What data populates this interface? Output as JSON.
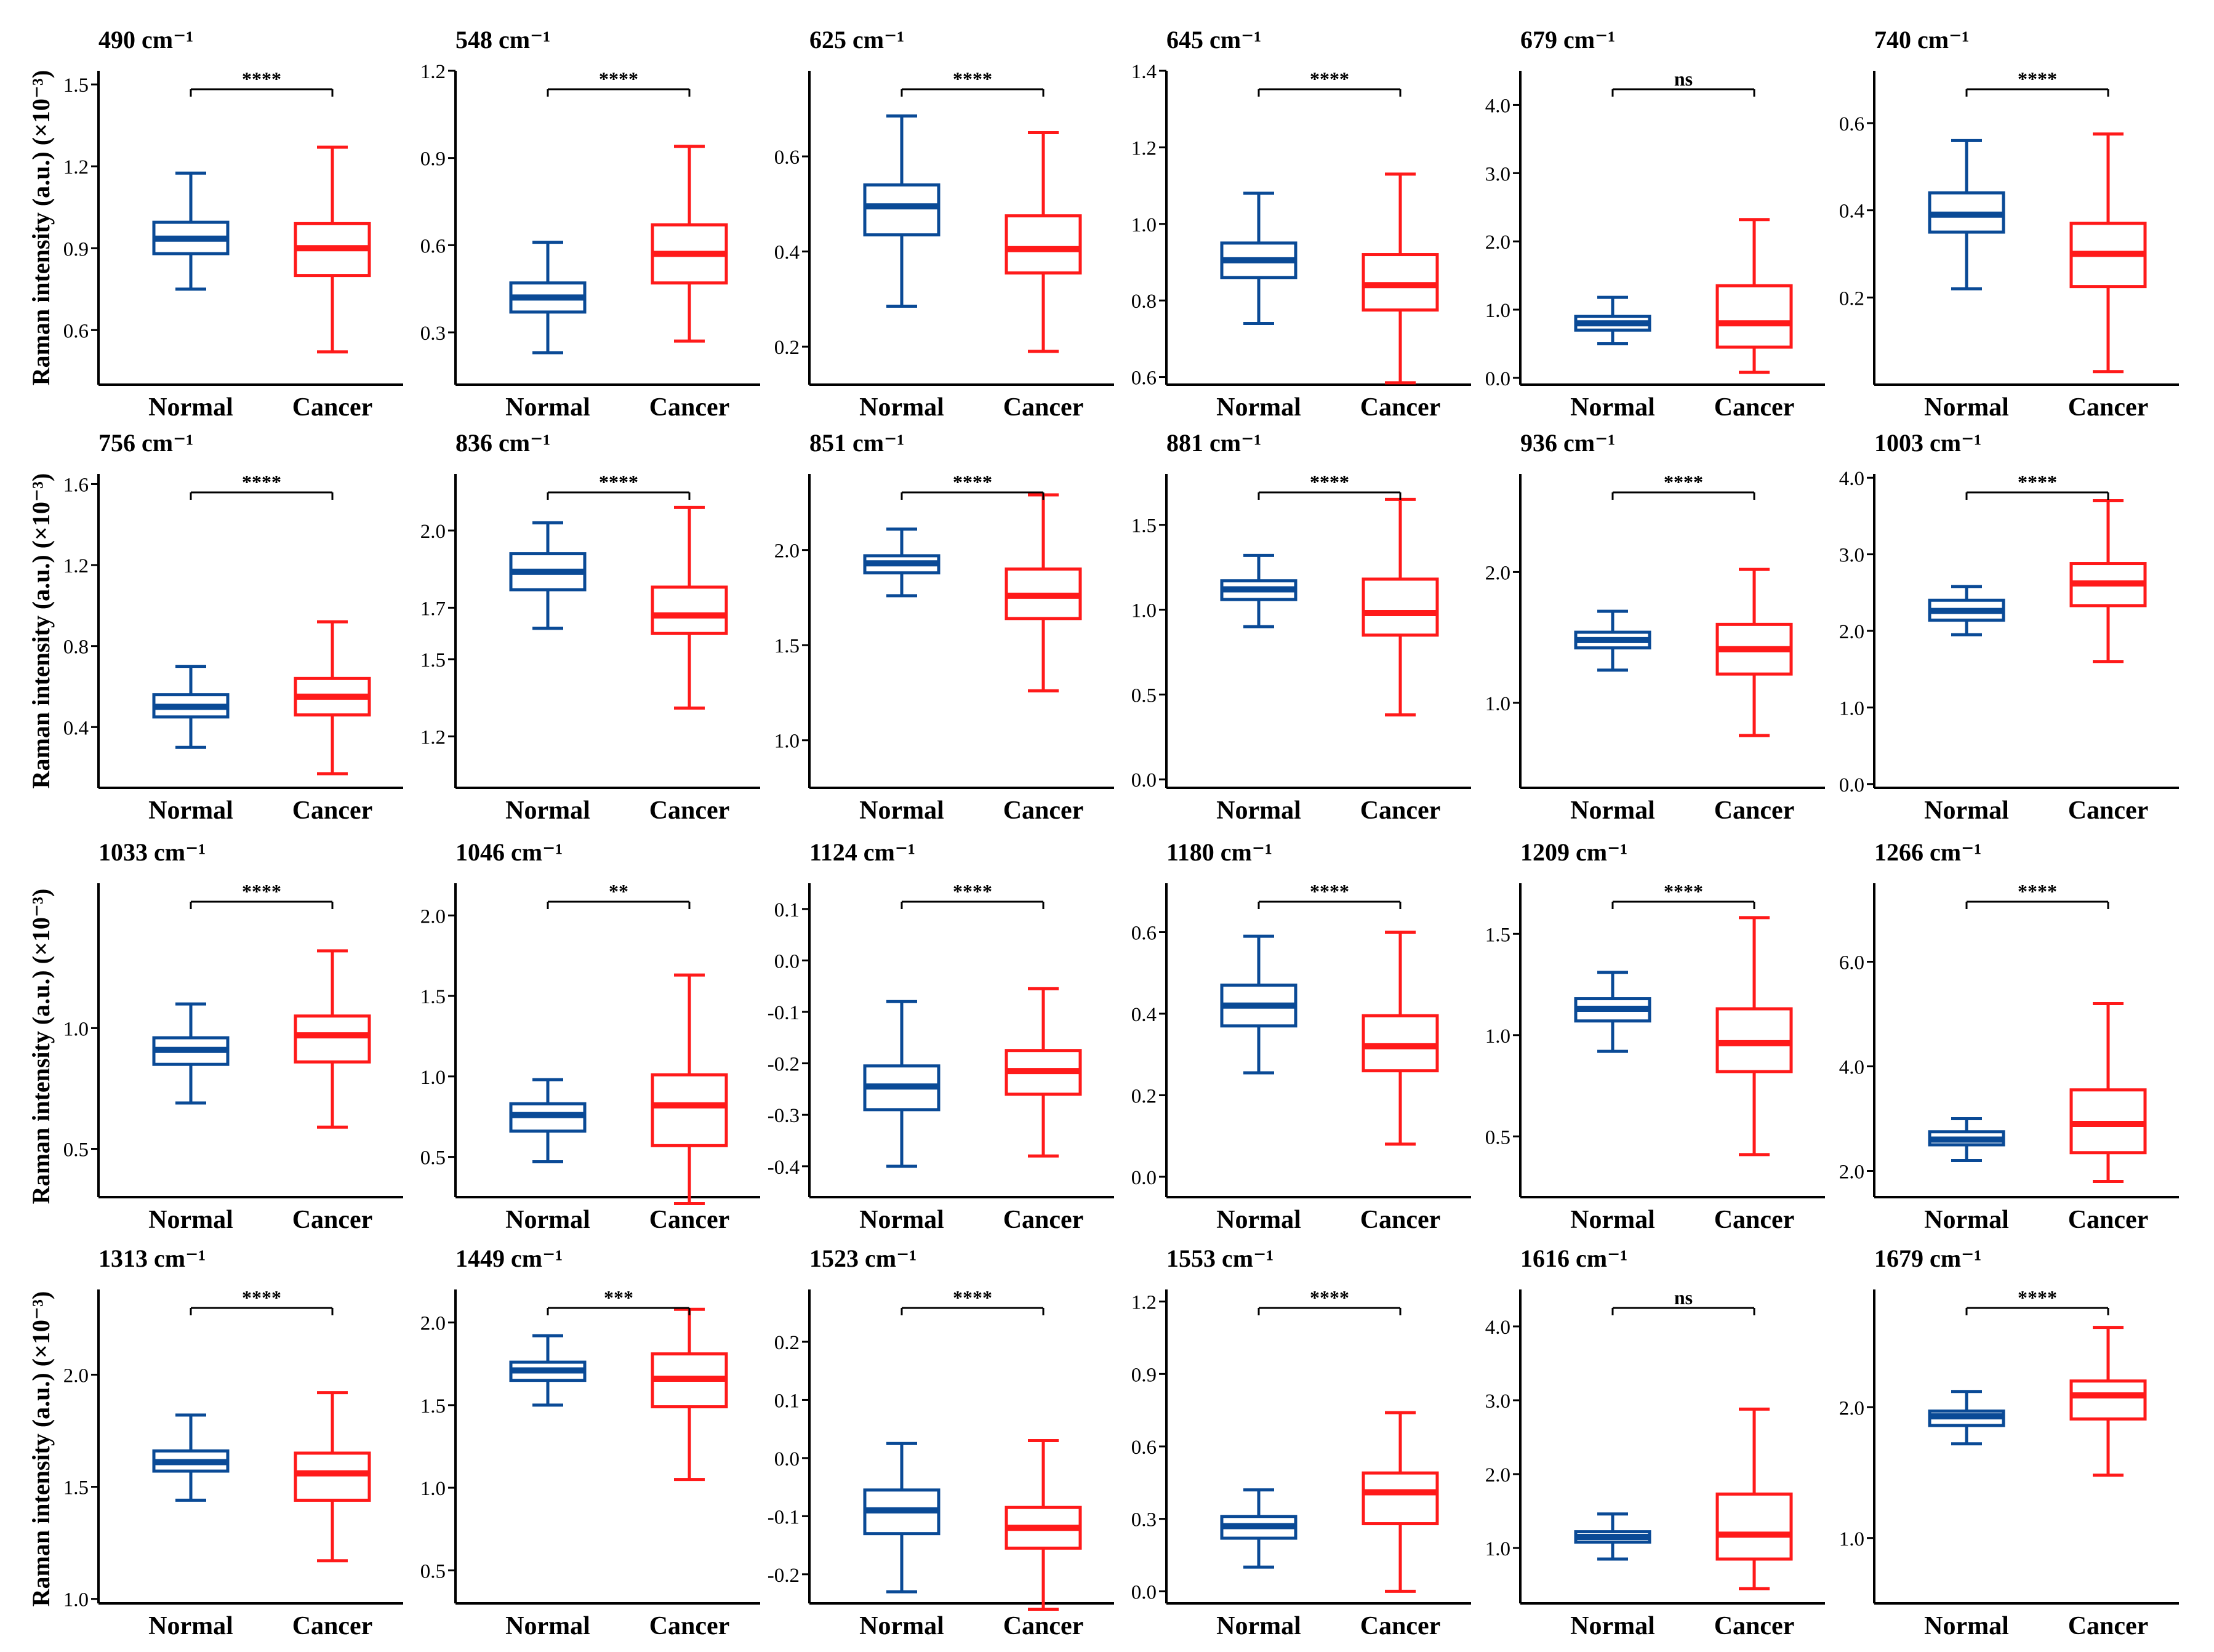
{
  "figure": {
    "ylabel": "Raman intensity (a.u.) (×10⁻³)",
    "categories": [
      "Normal",
      "Cancer"
    ],
    "colors": {
      "normal": "#0a4a96",
      "cancer": "#ff1a1a",
      "axis": "#000000"
    }
  },
  "chart_data": [
    {
      "type": "box",
      "title": "490 cm⁻¹",
      "ylim": [
        0.4,
        1.55
      ],
      "ticks": [
        0.6,
        0.9,
        1.2,
        1.5
      ],
      "tick_labels": [
        "0.6",
        "0.9",
        "1.2",
        "1.5"
      ],
      "sig": "****",
      "categories": [
        "Normal",
        "Cancer"
      ],
      "series": [
        {
          "name": "Normal",
          "min": 0.75,
          "q1": 0.88,
          "median": 0.935,
          "q3": 0.995,
          "max": 1.175
        },
        {
          "name": "Cancer",
          "min": 0.52,
          "q1": 0.8,
          "median": 0.9,
          "q3": 0.99,
          "max": 1.27
        }
      ]
    },
    {
      "type": "box",
      "title": "548 cm⁻¹",
      "ylim": [
        0.12,
        1.2
      ],
      "ticks": [
        0.3,
        0.6,
        0.9,
        1.2
      ],
      "tick_labels": [
        "0.3",
        "0.6",
        "0.9",
        "1.2"
      ],
      "sig": "****",
      "categories": [
        "Normal",
        "Cancer"
      ],
      "series": [
        {
          "name": "Normal",
          "min": 0.23,
          "q1": 0.37,
          "median": 0.42,
          "q3": 0.47,
          "max": 0.61
        },
        {
          "name": "Cancer",
          "min": 0.27,
          "q1": 0.47,
          "median": 0.57,
          "q3": 0.67,
          "max": 0.94
        }
      ]
    },
    {
      "type": "box",
      "title": "625 cm⁻¹",
      "ylim": [
        0.12,
        0.78
      ],
      "ticks": [
        0.2,
        0.4,
        0.6
      ],
      "tick_labels": [
        "0.2",
        "0.4",
        "0.6"
      ],
      "sig": "****",
      "categories": [
        "Normal",
        "Cancer"
      ],
      "series": [
        {
          "name": "Normal",
          "min": 0.285,
          "q1": 0.435,
          "median": 0.495,
          "q3": 0.54,
          "max": 0.685
        },
        {
          "name": "Cancer",
          "min": 0.19,
          "q1": 0.355,
          "median": 0.405,
          "q3": 0.475,
          "max": 0.65
        }
      ]
    },
    {
      "type": "box",
      "title": "645 cm⁻¹",
      "ylim": [
        0.58,
        1.4
      ],
      "ticks": [
        0.6,
        0.8,
        1.0,
        1.2,
        1.4
      ],
      "tick_labels": [
        "0.6",
        "0.8",
        "1.0",
        "1.2",
        "1.4"
      ],
      "sig": "****",
      "categories": [
        "Normal",
        "Cancer"
      ],
      "series": [
        {
          "name": "Normal",
          "min": 0.74,
          "q1": 0.86,
          "median": 0.905,
          "q3": 0.95,
          "max": 1.08
        },
        {
          "name": "Cancer",
          "min": 0.585,
          "q1": 0.775,
          "median": 0.84,
          "q3": 0.92,
          "max": 1.13
        }
      ]
    },
    {
      "type": "box",
      "title": "679 cm⁻¹",
      "ylim": [
        -0.1,
        4.5
      ],
      "ticks": [
        0.0,
        1.0,
        2.0,
        3.0,
        4.0
      ],
      "tick_labels": [
        "0.0",
        "1.0",
        "2.0",
        "3.0",
        "4.0"
      ],
      "sig": "ns",
      "categories": [
        "Normal",
        "Cancer"
      ],
      "series": [
        {
          "name": "Normal",
          "min": 0.5,
          "q1": 0.7,
          "median": 0.8,
          "q3": 0.9,
          "max": 1.18
        },
        {
          "name": "Cancer",
          "min": 0.08,
          "q1": 0.45,
          "median": 0.8,
          "q3": 1.35,
          "max": 2.32
        }
      ]
    },
    {
      "type": "box",
      "title": "740 cm⁻¹",
      "ylim": [
        0.0,
        0.72
      ],
      "ticks": [
        0.2,
        0.4,
        0.6
      ],
      "tick_labels": [
        "0.2",
        "0.4",
        "0.6"
      ],
      "sig": "****",
      "categories": [
        "Normal",
        "Cancer"
      ],
      "series": [
        {
          "name": "Normal",
          "min": 0.22,
          "q1": 0.35,
          "median": 0.39,
          "q3": 0.44,
          "max": 0.56
        },
        {
          "name": "Cancer",
          "min": 0.03,
          "q1": 0.225,
          "median": 0.3,
          "q3": 0.37,
          "max": 0.575
        }
      ]
    },
    {
      "type": "box",
      "title": "756 cm⁻¹",
      "ylim": [
        0.1,
        1.65
      ],
      "ticks": [
        0.4,
        0.8,
        1.2,
        1.6
      ],
      "tick_labels": [
        "0.4",
        "0.8",
        "1.2",
        "1.6"
      ],
      "sig": "****",
      "categories": [
        "Normal",
        "Cancer"
      ],
      "series": [
        {
          "name": "Normal",
          "min": 0.3,
          "q1": 0.45,
          "median": 0.5,
          "q3": 0.56,
          "max": 0.7
        },
        {
          "name": "Cancer",
          "min": 0.17,
          "q1": 0.46,
          "median": 0.55,
          "q3": 0.64,
          "max": 0.92
        }
      ]
    },
    {
      "type": "box",
      "title": "836 cm⁻¹",
      "ylim": [
        1.0,
        2.22
      ],
      "ticks": [
        1.2,
        1.5,
        1.7,
        2.0
      ],
      "tick_labels": [
        "1.2",
        "1.5",
        "1.7",
        "2.0"
      ],
      "sig": "****",
      "categories": [
        "Normal",
        "Cancer"
      ],
      "series": [
        {
          "name": "Normal",
          "min": 1.62,
          "q1": 1.77,
          "median": 1.84,
          "q3": 1.91,
          "max": 2.03
        },
        {
          "name": "Cancer",
          "min": 1.31,
          "q1": 1.6,
          "median": 1.67,
          "q3": 1.78,
          "max": 2.09
        }
      ]
    },
    {
      "type": "box",
      "title": "851 cm⁻¹",
      "ylim": [
        0.75,
        2.4
      ],
      "ticks": [
        1.0,
        1.5,
        2.0
      ],
      "tick_labels": [
        "1.0",
        "1.5",
        "2.0"
      ],
      "sig": "****",
      "categories": [
        "Normal",
        "Cancer"
      ],
      "series": [
        {
          "name": "Normal",
          "min": 1.76,
          "q1": 1.88,
          "median": 1.93,
          "q3": 1.97,
          "max": 2.11
        },
        {
          "name": "Cancer",
          "min": 1.26,
          "q1": 1.64,
          "median": 1.76,
          "q3": 1.9,
          "max": 2.29
        }
      ]
    },
    {
      "type": "box",
      "title": "881 cm⁻¹",
      "ylim": [
        -0.05,
        1.8
      ],
      "ticks": [
        0.0,
        0.5,
        1.0,
        1.5
      ],
      "tick_labels": [
        "0.0",
        "0.5",
        "1.0",
        "1.5"
      ],
      "sig": "****",
      "categories": [
        "Normal",
        "Cancer"
      ],
      "series": [
        {
          "name": "Normal",
          "min": 0.9,
          "q1": 1.06,
          "median": 1.12,
          "q3": 1.17,
          "max": 1.32
        },
        {
          "name": "Cancer",
          "min": 0.38,
          "q1": 0.85,
          "median": 0.98,
          "q3": 1.18,
          "max": 1.65
        }
      ]
    },
    {
      "type": "box",
      "title": "936 cm⁻¹",
      "ylim": [
        0.35,
        2.75
      ],
      "ticks": [
        1.0,
        2.0
      ],
      "tick_labels": [
        "1.0",
        "2.0"
      ],
      "sig": "****",
      "categories": [
        "Normal",
        "Cancer"
      ],
      "series": [
        {
          "name": "Normal",
          "min": 1.25,
          "q1": 1.42,
          "median": 1.48,
          "q3": 1.54,
          "max": 1.7
        },
        {
          "name": "Cancer",
          "min": 0.75,
          "q1": 1.22,
          "median": 1.41,
          "q3": 1.6,
          "max": 2.02
        }
      ]
    },
    {
      "type": "box",
      "title": "1003 cm⁻¹",
      "ylim": [
        -0.05,
        4.05
      ],
      "ticks": [
        0.0,
        1.0,
        2.0,
        3.0,
        4.0
      ],
      "tick_labels": [
        "0.0",
        "1.0",
        "2.0",
        "3.0",
        "4.0"
      ],
      "sig": "****",
      "categories": [
        "Normal",
        "Cancer"
      ],
      "series": [
        {
          "name": "Normal",
          "min": 1.95,
          "q1": 2.14,
          "median": 2.26,
          "q3": 2.4,
          "max": 2.58
        },
        {
          "name": "Cancer",
          "min": 1.6,
          "q1": 2.33,
          "median": 2.62,
          "q3": 2.88,
          "max": 3.7
        }
      ]
    },
    {
      "type": "box",
      "title": "1033 cm⁻¹",
      "ylim": [
        0.3,
        1.6
      ],
      "ticks": [
        0.5,
        1.0
      ],
      "tick_labels": [
        "0.5",
        "1.0"
      ],
      "sig": "****",
      "categories": [
        "Normal",
        "Cancer"
      ],
      "series": [
        {
          "name": "Normal",
          "min": 0.69,
          "q1": 0.85,
          "median": 0.91,
          "q3": 0.96,
          "max": 1.1
        },
        {
          "name": "Cancer",
          "min": 0.59,
          "q1": 0.86,
          "median": 0.97,
          "q3": 1.05,
          "max": 1.32
        }
      ]
    },
    {
      "type": "box",
      "title": "1046 cm⁻¹",
      "ylim": [
        0.25,
        2.2
      ],
      "ticks": [
        0.5,
        1.0,
        1.5,
        2.0
      ],
      "tick_labels": [
        "0.5",
        "1.0",
        "1.5",
        "2.0"
      ],
      "sig": "**",
      "categories": [
        "Normal",
        "Cancer"
      ],
      "series": [
        {
          "name": "Normal",
          "min": 0.47,
          "q1": 0.66,
          "median": 0.76,
          "q3": 0.83,
          "max": 0.98
        },
        {
          "name": "Cancer",
          "min": 0.21,
          "q1": 0.57,
          "median": 0.82,
          "q3": 1.01,
          "max": 1.63
        }
      ]
    },
    {
      "type": "box",
      "title": "1124 cm⁻¹",
      "ylim": [
        -0.46,
        0.15
      ],
      "ticks": [
        -0.4,
        -0.3,
        -0.2,
        -0.1,
        0.0,
        0.1
      ],
      "tick_labels": [
        "-0.4",
        "-0.3",
        "-0.2",
        "-0.1",
        "0.0",
        "0.1"
      ],
      "sig": "****",
      "categories": [
        "Normal",
        "Cancer"
      ],
      "series": [
        {
          "name": "Normal",
          "min": -0.4,
          "q1": -0.29,
          "median": -0.245,
          "q3": -0.205,
          "max": -0.08
        },
        {
          "name": "Cancer",
          "min": -0.38,
          "q1": -0.26,
          "median": -0.215,
          "q3": -0.175,
          "max": -0.055
        }
      ]
    },
    {
      "type": "box",
      "title": "1180 cm⁻¹",
      "ylim": [
        -0.05,
        0.72
      ],
      "ticks": [
        0.0,
        0.2,
        0.4,
        0.6
      ],
      "tick_labels": [
        "0.0",
        "0.2",
        "0.4",
        "0.6"
      ],
      "sig": "****",
      "categories": [
        "Normal",
        "Cancer"
      ],
      "series": [
        {
          "name": "Normal",
          "min": 0.255,
          "q1": 0.37,
          "median": 0.42,
          "q3": 0.47,
          "max": 0.59
        },
        {
          "name": "Cancer",
          "min": 0.08,
          "q1": 0.26,
          "median": 0.32,
          "q3": 0.395,
          "max": 0.6
        }
      ]
    },
    {
      "type": "box",
      "title": "1209 cm⁻¹",
      "ylim": [
        0.2,
        1.75
      ],
      "ticks": [
        0.5,
        1.0,
        1.5
      ],
      "tick_labels": [
        "0.5",
        "1.0",
        "1.5"
      ],
      "sig": "****",
      "categories": [
        "Normal",
        "Cancer"
      ],
      "series": [
        {
          "name": "Normal",
          "min": 0.92,
          "q1": 1.07,
          "median": 1.13,
          "q3": 1.18,
          "max": 1.31
        },
        {
          "name": "Cancer",
          "min": 0.41,
          "q1": 0.82,
          "median": 0.96,
          "q3": 1.13,
          "max": 1.58
        }
      ]
    },
    {
      "type": "box",
      "title": "1266 cm⁻¹",
      "ylim": [
        1.5,
        7.5
      ],
      "ticks": [
        2.0,
        4.0,
        6.0
      ],
      "tick_labels": [
        "2.0",
        "4.0",
        "6.0"
      ],
      "sig": "****",
      "categories": [
        "Normal",
        "Cancer"
      ],
      "series": [
        {
          "name": "Normal",
          "min": 2.2,
          "q1": 2.5,
          "median": 2.6,
          "q3": 2.75,
          "max": 3.0
        },
        {
          "name": "Cancer",
          "min": 1.8,
          "q1": 2.35,
          "median": 2.9,
          "q3": 3.55,
          "max": 5.2
        }
      ]
    },
    {
      "type": "box",
      "title": "1313 cm⁻¹",
      "ylim": [
        0.98,
        2.38
      ],
      "ticks": [
        1.0,
        1.5,
        2.0
      ],
      "tick_labels": [
        "1.0",
        "1.5",
        "2.0"
      ],
      "sig": "****",
      "categories": [
        "Normal",
        "Cancer"
      ],
      "series": [
        {
          "name": "Normal",
          "min": 1.44,
          "q1": 1.57,
          "median": 1.61,
          "q3": 1.66,
          "max": 1.82
        },
        {
          "name": "Cancer",
          "min": 1.17,
          "q1": 1.44,
          "median": 1.56,
          "q3": 1.65,
          "max": 1.92
        }
      ]
    },
    {
      "type": "box",
      "title": "1449 cm⁻¹",
      "ylim": [
        0.3,
        2.2
      ],
      "ticks": [
        0.5,
        1.0,
        1.5,
        2.0
      ],
      "tick_labels": [
        "0.5",
        "1.0",
        "1.5",
        "2.0"
      ],
      "sig": "***",
      "categories": [
        "Normal",
        "Cancer"
      ],
      "series": [
        {
          "name": "Normal",
          "min": 1.5,
          "q1": 1.65,
          "median": 1.71,
          "q3": 1.76,
          "max": 1.92
        },
        {
          "name": "Cancer",
          "min": 1.05,
          "q1": 1.49,
          "median": 1.66,
          "q3": 1.81,
          "max": 2.08
        }
      ]
    },
    {
      "type": "box",
      "title": "1523 cm⁻¹",
      "ylim": [
        -0.25,
        0.29
      ],
      "ticks": [
        -0.2,
        -0.1,
        0.0,
        0.1,
        0.2
      ],
      "tick_labels": [
        "-0.2",
        "-0.1",
        "0.0",
        "0.1",
        "0.2"
      ],
      "sig": "****",
      "categories": [
        "Normal",
        "Cancer"
      ],
      "series": [
        {
          "name": "Normal",
          "min": -0.23,
          "q1": -0.13,
          "median": -0.09,
          "q3": -0.055,
          "max": 0.025
        },
        {
          "name": "Cancer",
          "min": -0.26,
          "q1": -0.155,
          "median": -0.12,
          "q3": -0.085,
          "max": 0.03
        }
      ]
    },
    {
      "type": "box",
      "title": "1553 cm⁻¹",
      "ylim": [
        -0.05,
        1.25
      ],
      "ticks": [
        0.0,
        0.3,
        0.6,
        0.9,
        1.2
      ],
      "tick_labels": [
        "0.0",
        "0.3",
        "0.6",
        "0.9",
        "1.2"
      ],
      "sig": "****",
      "categories": [
        "Normal",
        "Cancer"
      ],
      "series": [
        {
          "name": "Normal",
          "min": 0.1,
          "q1": 0.22,
          "median": 0.27,
          "q3": 0.31,
          "max": 0.42
        },
        {
          "name": "Cancer",
          "min": 0.0,
          "q1": 0.28,
          "median": 0.41,
          "q3": 0.49,
          "max": 0.74
        }
      ]
    },
    {
      "type": "box",
      "title": "1616 cm⁻¹",
      "ylim": [
        0.25,
        4.5
      ],
      "ticks": [
        1.0,
        2.0,
        3.0,
        4.0
      ],
      "tick_labels": [
        "1.0",
        "2.0",
        "3.0",
        "4.0"
      ],
      "sig": "ns",
      "categories": [
        "Normal",
        "Cancer"
      ],
      "series": [
        {
          "name": "Normal",
          "min": 0.85,
          "q1": 1.08,
          "median": 1.15,
          "q3": 1.22,
          "max": 1.46
        },
        {
          "name": "Cancer",
          "min": 0.45,
          "q1": 0.85,
          "median": 1.18,
          "q3": 1.73,
          "max": 2.88
        }
      ]
    },
    {
      "type": "box",
      "title": "1679 cm⁻¹",
      "ylim": [
        0.5,
        2.9
      ],
      "ticks": [
        1.0,
        2.0
      ],
      "tick_labels": [
        "1.0",
        "2.0"
      ],
      "sig": "****",
      "categories": [
        "Normal",
        "Cancer"
      ],
      "series": [
        {
          "name": "Normal",
          "min": 1.72,
          "q1": 1.86,
          "median": 1.93,
          "q3": 1.97,
          "max": 2.12
        },
        {
          "name": "Cancer",
          "min": 1.48,
          "q1": 1.91,
          "median": 2.09,
          "q3": 2.2,
          "max": 2.61
        }
      ]
    }
  ]
}
